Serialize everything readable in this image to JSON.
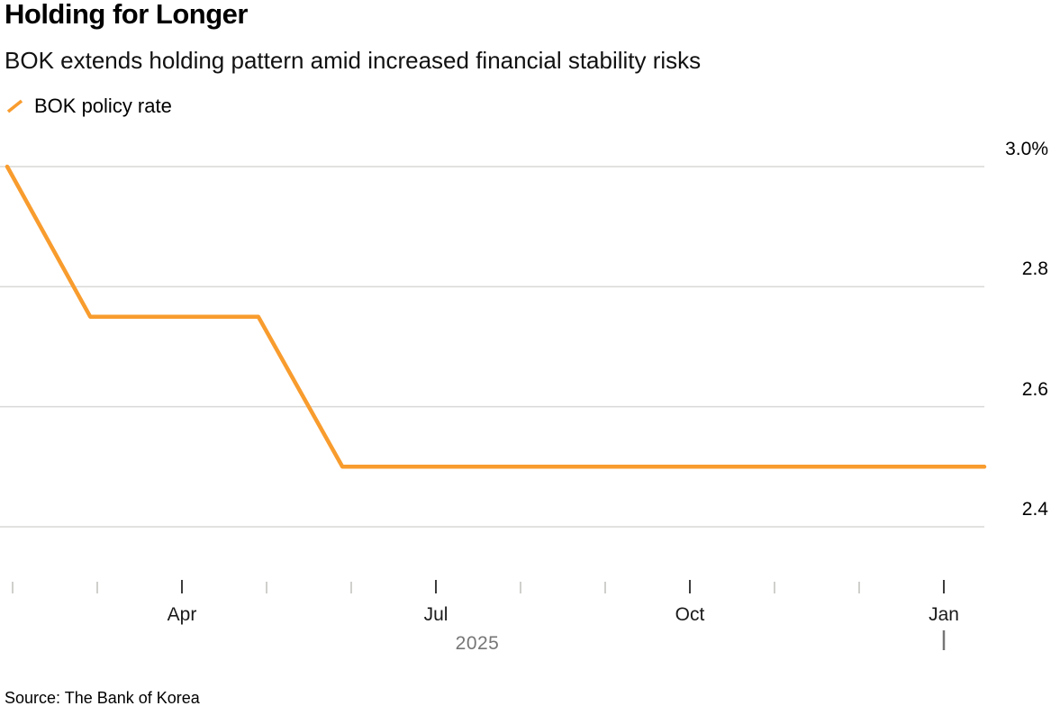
{
  "chart_data": {
    "type": "line",
    "title": "Holding for Longer",
    "subtitle": "BOK extends holding pattern amid increased financial stability risks",
    "legend": {
      "label": "BOK policy rate"
    },
    "source": "Source: The Bank of Korea",
    "line_color": "#F89C2E",
    "grid_color": "#D9D9D6",
    "muted_text_color": "#767676",
    "y_axis": {
      "unit": "%",
      "range": [
        2.4,
        3.0
      ],
      "ticks": [
        {
          "label": "3.0%",
          "value": 3.0
        },
        {
          "label": "2.8",
          "value": 2.8
        },
        {
          "label": "2.6",
          "value": 2.6
        },
        {
          "label": "2.4",
          "value": 2.4
        }
      ]
    },
    "x_axis": {
      "tick_count": 12,
      "labels": [
        {
          "text": "Apr",
          "tick": 2
        },
        {
          "text": "Jul",
          "tick": 5
        },
        {
          "text": "Oct",
          "tick": 8
        },
        {
          "text": "Jan",
          "tick": 11
        }
      ],
      "year_label": "2025",
      "year_boundary_tick": 11
    },
    "series": [
      {
        "name": "BOK policy rate",
        "x_unit": "fraction_of_plot_width",
        "points": [
          {
            "x": 0.0,
            "value": 3.0
          },
          {
            "x": 0.085,
            "value": 2.75
          },
          {
            "x": 0.257,
            "value": 2.75
          },
          {
            "x": 0.343,
            "value": 2.5
          },
          {
            "x": 1.0,
            "value": 2.5
          }
        ]
      }
    ]
  }
}
